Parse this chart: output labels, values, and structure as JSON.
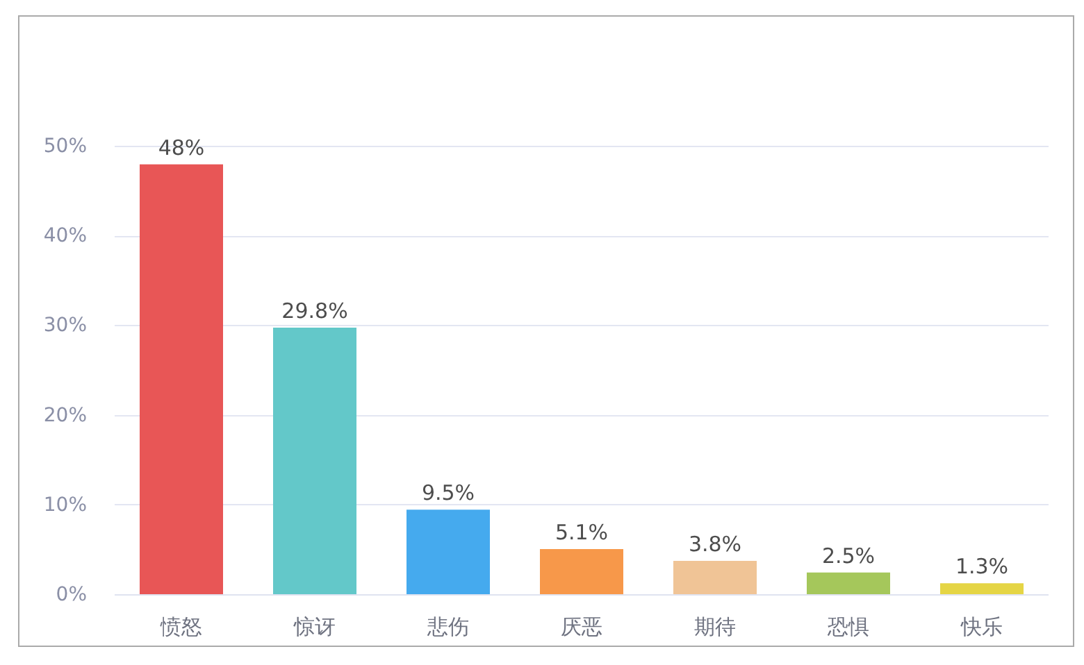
{
  "chart_data": {
    "type": "bar",
    "categories": [
      "愤怒",
      "惊讶",
      "悲伤",
      "厌恶",
      "期待",
      "恐惧",
      "快乐"
    ],
    "values": [
      48,
      29.8,
      9.5,
      5.1,
      3.8,
      2.5,
      1.3
    ],
    "colors": [
      "#e85656",
      "#63c8c9",
      "#45aaee",
      "#f7984a",
      "#f0c496",
      "#a5c75b",
      "#e5d545"
    ],
    "value_labels": [
      "48%",
      "29.8%",
      "9.5%",
      "5.1%",
      "3.8%",
      "2.5%",
      "1.3%"
    ],
    "ylim": [
      0,
      50
    ],
    "yticks": [
      {
        "value": 0,
        "label": "0%"
      },
      {
        "value": 10,
        "label": "10%"
      },
      {
        "value": 20,
        "label": "20%"
      },
      {
        "value": 30,
        "label": "30%"
      },
      {
        "value": 40,
        "label": "40%"
      },
      {
        "value": 50,
        "label": "50%"
      }
    ],
    "grid": "y"
  }
}
